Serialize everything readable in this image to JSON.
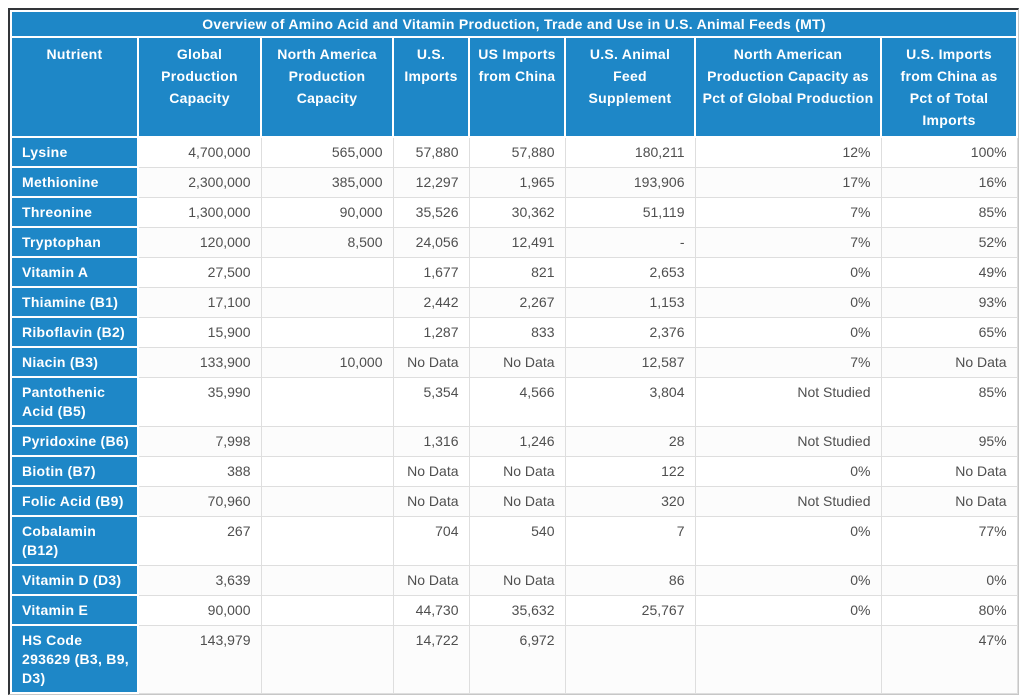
{
  "table": {
    "title": "Overview of Amino Acid and Vitamin Production, Trade and Use in U.S. Animal Feeds (MT)",
    "columns": [
      "Nutrient",
      "Global Production Capacity",
      "North America Production Capacity",
      "U.S. Imports",
      "US Imports from China",
      "U.S. Animal Feed Supplement",
      "North American Production Capacity as Pct of Global Production",
      "U.S. Imports from China as Pct of Total Imports"
    ],
    "rows": [
      {
        "nutrient": "Lysine",
        "values": [
          "4,700,000",
          "565,000",
          "57,880",
          "57,880",
          "180,211",
          "12%",
          "100%"
        ]
      },
      {
        "nutrient": "Methionine",
        "values": [
          "2,300,000",
          "385,000",
          "12,297",
          "1,965",
          "193,906",
          "17%",
          "16%"
        ]
      },
      {
        "nutrient": "Threonine",
        "values": [
          "1,300,000",
          "90,000",
          "35,526",
          "30,362",
          "51,119",
          "7%",
          "85%"
        ]
      },
      {
        "nutrient": "Tryptophan",
        "values": [
          "120,000",
          "8,500",
          "24,056",
          "12,491",
          "-",
          "7%",
          "52%"
        ]
      },
      {
        "nutrient": "Vitamin A",
        "values": [
          "27,500",
          "",
          "1,677",
          "821",
          "2,653",
          "0%",
          "49%"
        ]
      },
      {
        "nutrient": "Thiamine (B1)",
        "values": [
          "17,100",
          "",
          "2,442",
          "2,267",
          "1,153",
          "0%",
          "93%"
        ]
      },
      {
        "nutrient": "Riboflavin (B2)",
        "values": [
          "15,900",
          "",
          "1,287",
          "833",
          "2,376",
          "0%",
          "65%"
        ]
      },
      {
        "nutrient": "Niacin (B3)",
        "values": [
          "133,900",
          "10,000",
          "No Data",
          "No Data",
          "12,587",
          "7%",
          "No Data"
        ]
      },
      {
        "nutrient": "Pantothenic Acid (B5)",
        "values": [
          "35,990",
          "",
          "5,354",
          "4,566",
          "3,804",
          "Not Studied",
          "85%"
        ]
      },
      {
        "nutrient": "Pyridoxine (B6)",
        "values": [
          "7,998",
          "",
          "1,316",
          "1,246",
          "28",
          "Not Studied",
          "95%"
        ]
      },
      {
        "nutrient": "Biotin (B7)",
        "values": [
          "388",
          "",
          "No Data",
          "No Data",
          "122",
          "0%",
          "No Data"
        ]
      },
      {
        "nutrient": "Folic Acid (B9)",
        "values": [
          "70,960",
          "",
          "No Data",
          "No Data",
          "320",
          "Not Studied",
          "No Data"
        ]
      },
      {
        "nutrient": "Cobalamin (B12)",
        "values": [
          "267",
          "",
          "704",
          "540",
          "7",
          "0%",
          "77%"
        ]
      },
      {
        "nutrient": "Vitamin D (D3)",
        "values": [
          "3,639",
          "",
          "No Data",
          "No Data",
          "86",
          "0%",
          "0%"
        ]
      },
      {
        "nutrient": "Vitamin E",
        "values": [
          "90,000",
          "",
          "44,730",
          "35,632",
          "25,767",
          "0%",
          "80%"
        ]
      },
      {
        "nutrient": "HS Code 293629 (B3, B9, D3)",
        "values": [
          "143,979",
          "",
          "14,722",
          "6,972",
          "",
          "",
          "47%"
        ]
      }
    ]
  },
  "colors": {
    "header_bg": "#1e87c7",
    "header_text": "#ffffff",
    "body_text": "#4f4f4f",
    "grid_line": "#dedede",
    "outer_border_dark": "#323539"
  }
}
